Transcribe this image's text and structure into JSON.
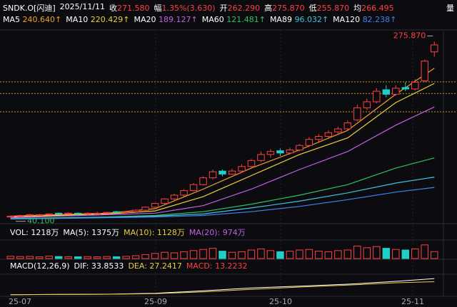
{
  "header": {
    "symbol": "SNDK.O[闪迪]",
    "date": "2025/11/11",
    "items": [
      {
        "label": "收",
        "value": "271.580"
      },
      {
        "label": "幅",
        "value": "1.35%(3.630)"
      },
      {
        "label": "开",
        "value": "262.290"
      },
      {
        "label": "高",
        "value": "275.870"
      },
      {
        "label": "低",
        "value": "255.870"
      },
      {
        "label": "均",
        "value": "266.495"
      }
    ],
    "extra": "量"
  },
  "ma_legend": [
    {
      "label": "MA5",
      "value": "240.640↑",
      "color": "#f0a030"
    },
    {
      "label": "MA10",
      "value": "220.429↑",
      "color": "#e8d040"
    },
    {
      "label": "MA20",
      "value": "189.127↑",
      "color": "#c060e0"
    },
    {
      "label": "MA60",
      "value": "121.481↑",
      "color": "#30c060"
    },
    {
      "label": "MA89",
      "value": "96.032↑",
      "color": "#40c0e0"
    },
    {
      "label": "MA120",
      "value": "82.238↑",
      "color": "#4080f0"
    }
  ],
  "chart_data": {
    "type": "candlestick",
    "up_color": "#ff4040",
    "down_color": "#20d0c8",
    "ylim": [
      36,
      282
    ],
    "candles": [
      [
        43,
        45,
        42,
        44
      ],
      [
        44,
        46,
        43,
        45
      ],
      [
        45,
        47,
        44,
        46
      ],
      [
        46,
        47,
        45,
        46
      ],
      [
        46,
        48,
        45,
        47
      ],
      [
        48,
        49,
        46,
        47
      ],
      [
        47,
        49,
        46,
        48
      ],
      [
        48,
        49,
        46,
        47
      ],
      [
        47,
        49,
        46,
        48
      ],
      [
        48,
        50,
        47,
        48
      ],
      [
        48,
        50,
        47,
        49
      ],
      [
        50,
        51,
        48,
        49
      ],
      [
        49,
        51,
        48,
        50
      ],
      [
        50,
        53,
        49,
        52
      ],
      [
        52,
        57,
        51,
        56
      ],
      [
        56,
        62,
        55,
        61
      ],
      [
        61,
        68,
        60,
        67
      ],
      [
        67,
        74,
        65,
        72
      ],
      [
        72,
        80,
        70,
        78
      ],
      [
        78,
        88,
        77,
        86
      ],
      [
        86,
        97,
        85,
        95
      ],
      [
        95,
        106,
        93,
        103
      ],
      [
        104,
        106,
        97,
        100
      ],
      [
        100,
        107,
        99,
        104
      ],
      [
        104,
        113,
        102,
        110
      ],
      [
        110,
        120,
        108,
        118
      ],
      [
        118,
        130,
        116,
        126
      ],
      [
        126,
        133,
        122,
        130
      ],
      [
        131,
        134,
        124,
        128
      ],
      [
        128,
        135,
        126,
        132
      ],
      [
        132,
        140,
        130,
        138
      ],
      [
        138,
        149,
        136,
        146
      ],
      [
        146,
        153,
        143,
        150
      ],
      [
        150,
        158,
        148,
        155
      ],
      [
        156,
        163,
        152,
        160
      ],
      [
        160,
        171,
        158,
        168
      ],
      [
        172,
        192,
        170,
        188
      ],
      [
        188,
        200,
        185,
        196
      ],
      [
        196,
        214,
        194,
        210
      ],
      [
        212,
        218,
        202,
        206
      ],
      [
        206,
        218,
        204,
        214
      ],
      [
        215,
        222,
        210,
        213
      ],
      [
        213,
        226,
        211,
        222
      ],
      [
        224,
        252,
        222,
        250
      ],
      [
        262.29,
        275.87,
        255.87,
        271.58
      ]
    ],
    "high_mark": {
      "value": 275.87,
      "label": "275.870"
    },
    "low_mark": {
      "value": 40.1,
      "label": "40.100"
    },
    "levels": [
      222.5,
      207,
      182.7
    ],
    "level_color": "#c8a000",
    "ma_x": [
      0,
      5,
      10,
      15,
      20,
      25,
      30,
      35,
      40,
      44
    ],
    "ma_lines": [
      {
        "name": "MA5",
        "color": "#f0a030",
        "values": [
          44,
          46,
          48,
          54,
          80,
          108,
          132,
          158,
          206,
          240.64
        ]
      },
      {
        "name": "MA10",
        "color": "#e8d040",
        "values": [
          43,
          45,
          47,
          51,
          70,
          98,
          126,
          148,
          195,
          220.429
        ]
      },
      {
        "name": "MA20",
        "color": "#c060e0",
        "values": [
          42,
          44,
          46,
          48,
          58,
          80,
          106,
          130,
          165,
          189.127
        ]
      },
      {
        "name": "MA60",
        "color": "#30c060",
        "values": [
          41,
          42,
          43,
          45,
          50,
          60,
          72,
          86,
          108,
          121.481
        ]
      },
      {
        "name": "MA89",
        "color": "#40c0e0",
        "values": [
          40.5,
          41.5,
          42.5,
          44,
          47,
          55,
          64,
          75,
          88,
          96.032
        ]
      },
      {
        "name": "MA120",
        "color": "#4080f0",
        "values": [
          40.2,
          41,
          42,
          43,
          45,
          50,
          57,
          66,
          76,
          82.238
        ]
      }
    ],
    "volume": {
      "legend": [
        "VOL: 1218万",
        "MA(5): 1375万",
        "MA(10): 1128万",
        "MA(20): 974万"
      ],
      "legend_colors": [
        "#ffffff",
        "#ffffff",
        "#e8d040",
        "#c060e0"
      ],
      "ylim": [
        0,
        3000
      ],
      "values": [
        400,
        350,
        380,
        300,
        420,
        360,
        330,
        310,
        340,
        300,
        350,
        320,
        380,
        500,
        700,
        900,
        1100,
        1000,
        1200,
        1400,
        1600,
        1800,
        1300,
        1100,
        1200,
        1500,
        1700,
        1400,
        1200,
        1300,
        1500,
        1600,
        1300,
        1200,
        1400,
        1500,
        2200,
        1900,
        2100,
        1800,
        1600,
        1500,
        1700,
        2400,
        1218
      ]
    },
    "macd": {
      "legend": [
        "MACD(12,26,9)",
        "DIF: 33.8533",
        "DEA: 27.2417",
        "MACD: 13.2232"
      ],
      "legend_colors": [
        "#ffffff",
        "#ffffff",
        "#e8d040",
        "#ff4040"
      ],
      "ylim": [
        -2,
        40
      ],
      "dif": [
        0,
        0.5,
        1,
        3,
        8,
        14,
        18,
        22,
        28,
        33.8533
      ],
      "dea": [
        0,
        0.4,
        0.8,
        2,
        6,
        11,
        16,
        20,
        25,
        27.2417
      ]
    },
    "x_labels": [
      "25-07",
      "25-09",
      "25-10",
      "25-11"
    ]
  }
}
